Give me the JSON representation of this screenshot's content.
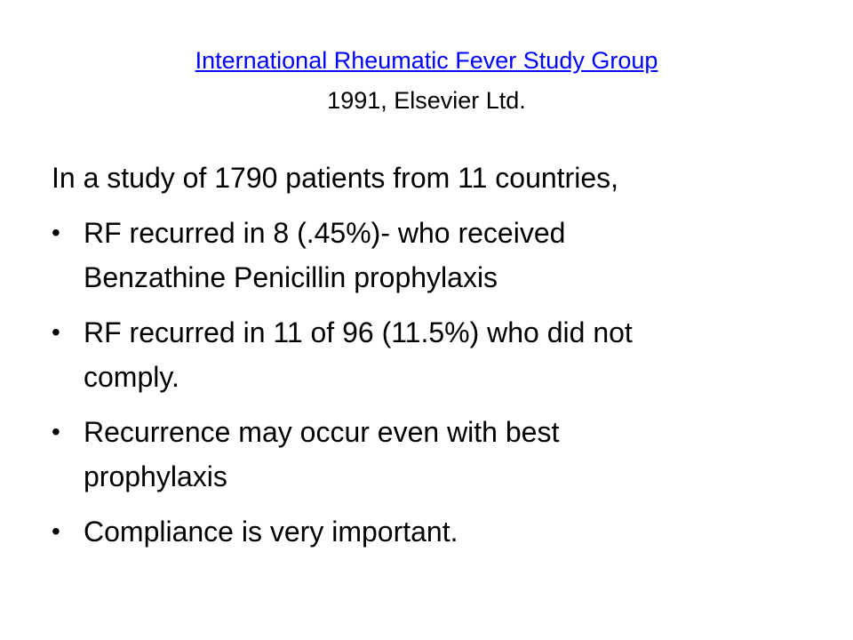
{
  "slide": {
    "title": {
      "link_text": "International Rheumatic Fever Study Group",
      "subtitle": "1991, Elsevier Ltd."
    },
    "intro": "In a study of 1790 patients from 11 countries,",
    "bullet_glyph": "•",
    "bullets": [
      {
        "lines": [
          "RF recurred in 8 (.45%)- who received",
          "Benzathine Penicillin prophylaxis"
        ]
      },
      {
        "lines": [
          "RF recurred in 11 of 96 (11.5%) who did not",
          "comply."
        ]
      },
      {
        "lines": [
          "Recurrence may occur even with best",
          "prophylaxis"
        ]
      },
      {
        "lines": [
          "Compliance is very important."
        ]
      }
    ]
  },
  "colors": {
    "link": "#0000ff",
    "text": "#000000",
    "background": "#ffffff"
  }
}
